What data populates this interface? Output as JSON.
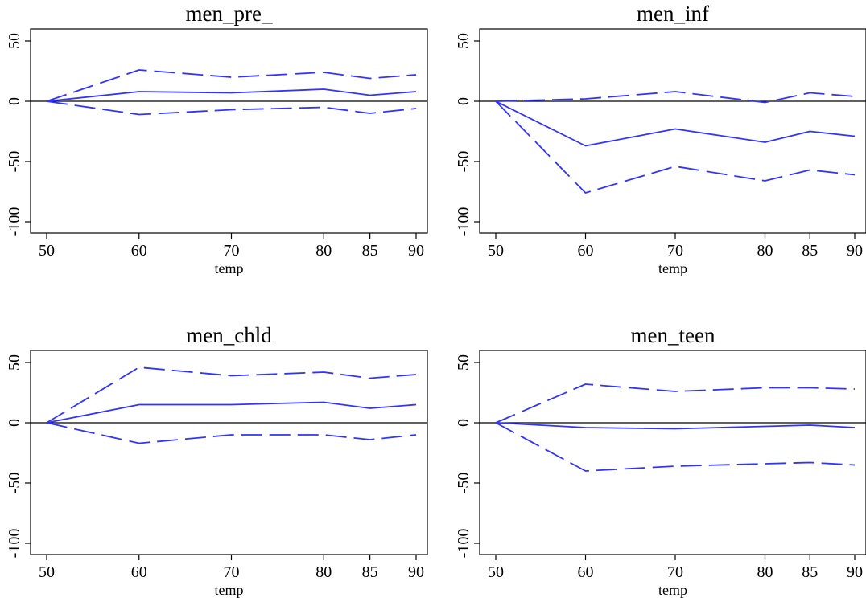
{
  "colors": {
    "series": "#3333ff",
    "zero_line": "#000000",
    "axis": "#000000",
    "background": "#ffffff"
  },
  "chart_data": [
    {
      "type": "line",
      "title": "men_pre_",
      "xlabel": "temp",
      "ylabel": "",
      "x": [
        50,
        60,
        70,
        80,
        85,
        90
      ],
      "xticks": [
        50,
        60,
        70,
        80,
        85,
        90
      ],
      "yticks": [
        50,
        0,
        -50,
        -100
      ],
      "xlim": [
        50,
        90
      ],
      "ylim": [
        -105,
        55
      ],
      "grid": false,
      "reference_line": 0,
      "series": [
        {
          "style": "dashed",
          "values": [
            0,
            26,
            20,
            24,
            19,
            22
          ]
        },
        {
          "style": "solid",
          "values": [
            0,
            8,
            7,
            10,
            5,
            8
          ]
        },
        {
          "style": "dashed",
          "values": [
            0,
            -11,
            -7,
            -5,
            -10,
            -6
          ]
        }
      ]
    },
    {
      "type": "line",
      "title": "men_inf",
      "xlabel": "temp",
      "ylabel": "",
      "x": [
        50,
        60,
        70,
        80,
        85,
        90
      ],
      "xticks": [
        50,
        60,
        70,
        80,
        85,
        90
      ],
      "yticks": [
        50,
        0,
        -50,
        -100
      ],
      "xlim": [
        50,
        90
      ],
      "ylim": [
        -105,
        55
      ],
      "grid": false,
      "reference_line": 0,
      "series": [
        {
          "style": "dashed",
          "values": [
            0,
            2,
            8,
            -1,
            7,
            4
          ]
        },
        {
          "style": "solid",
          "values": [
            0,
            -37,
            -23,
            -34,
            -25,
            -29
          ]
        },
        {
          "style": "dashed",
          "values": [
            0,
            -76,
            -54,
            -66,
            -57,
            -61
          ]
        }
      ]
    },
    {
      "type": "line",
      "title": "men_chld",
      "xlabel": "temp",
      "ylabel": "",
      "x": [
        50,
        60,
        70,
        80,
        85,
        90
      ],
      "xticks": [
        50,
        60,
        70,
        80,
        85,
        90
      ],
      "yticks": [
        50,
        0,
        -50,
        -100
      ],
      "xlim": [
        50,
        90
      ],
      "ylim": [
        -105,
        55
      ],
      "grid": false,
      "reference_line": 0,
      "series": [
        {
          "style": "dashed",
          "values": [
            0,
            46,
            39,
            42,
            37,
            40
          ]
        },
        {
          "style": "solid",
          "values": [
            0,
            15,
            15,
            17,
            12,
            15
          ]
        },
        {
          "style": "dashed",
          "values": [
            0,
            -17,
            -10,
            -10,
            -14,
            -10
          ]
        }
      ]
    },
    {
      "type": "line",
      "title": "men_teen",
      "xlabel": "temp",
      "ylabel": "",
      "x": [
        50,
        60,
        70,
        80,
        85,
        90
      ],
      "xticks": [
        50,
        60,
        70,
        80,
        85,
        90
      ],
      "yticks": [
        50,
        0,
        -50,
        -100
      ],
      "xlim": [
        50,
        90
      ],
      "ylim": [
        -105,
        55
      ],
      "grid": false,
      "reference_line": 0,
      "series": [
        {
          "style": "dashed",
          "values": [
            0,
            32,
            26,
            29,
            29,
            28
          ]
        },
        {
          "style": "solid",
          "values": [
            0,
            -4,
            -5,
            -3,
            -2,
            -4
          ]
        },
        {
          "style": "dashed",
          "values": [
            0,
            -40,
            -36,
            -34,
            -33,
            -35
          ]
        }
      ]
    }
  ]
}
